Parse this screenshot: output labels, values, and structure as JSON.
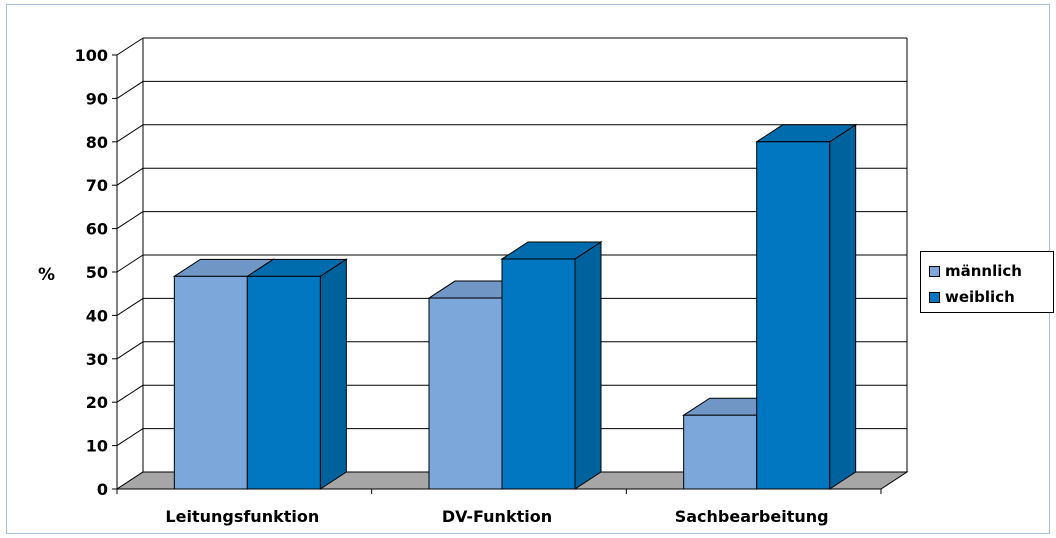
{
  "chart_data": {
    "type": "bar",
    "categories": [
      "Leitungsfunktion",
      "DV-Funktion",
      "Sachbearbeitung"
    ],
    "series": [
      {
        "name": "männlich",
        "values": [
          49,
          44,
          17
        ],
        "color": "#7BA7DB"
      },
      {
        "name": "weiblich",
        "values": [
          49,
          53,
          80
        ],
        "color": "#0077C0"
      }
    ],
    "ylabel": "%",
    "ylim": [
      0,
      100
    ],
    "yticks": [
      "0",
      "10",
      "20",
      "30",
      "40",
      "50",
      "60",
      "70",
      "80",
      "90",
      "100"
    ],
    "grid": true,
    "legend": "right",
    "style": "3d-clustered-column",
    "floor_color": "#A6A6A6"
  },
  "legend": {
    "items": [
      {
        "label": "männlich",
        "color": "#7BA7DB"
      },
      {
        "label": "weiblich",
        "color": "#0077C0"
      }
    ]
  }
}
